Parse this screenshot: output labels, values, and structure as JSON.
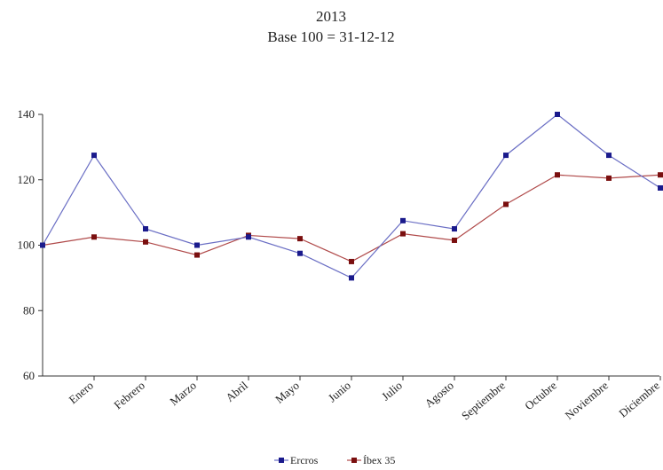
{
  "chart_data": {
    "type": "line",
    "title": "2013",
    "subtitle": "Base 100 = 31-12-12",
    "xlabel": "",
    "ylabel": "",
    "ylim": [
      60,
      140
    ],
    "yticks": [
      60,
      80,
      100,
      120,
      140
    ],
    "grid": false,
    "legend_position": "bottom",
    "categories": [
      "",
      "Enero",
      "Febrero",
      "Marzo",
      "Abril",
      "Mayo",
      "Junio",
      "Julio",
      "Agosto",
      "Septiembre",
      "Octubre",
      "Noviembre",
      "Diciembre"
    ],
    "series": [
      {
        "name": "Ercros",
        "color": "#6a6ec4",
        "marker_color": "#1a1a8c",
        "values": [
          100,
          127.5,
          105,
          100,
          102.5,
          97.5,
          90,
          107.5,
          105,
          127.5,
          140,
          127.5,
          117.5
        ]
      },
      {
        "name": "Íbex 35",
        "color": "#b04a4a",
        "marker_color": "#7a0f0f",
        "values": [
          100,
          102.5,
          101,
          97,
          103,
          102,
          95,
          103.5,
          101.5,
          112.5,
          121.5,
          120.5,
          121.5
        ]
      }
    ]
  }
}
